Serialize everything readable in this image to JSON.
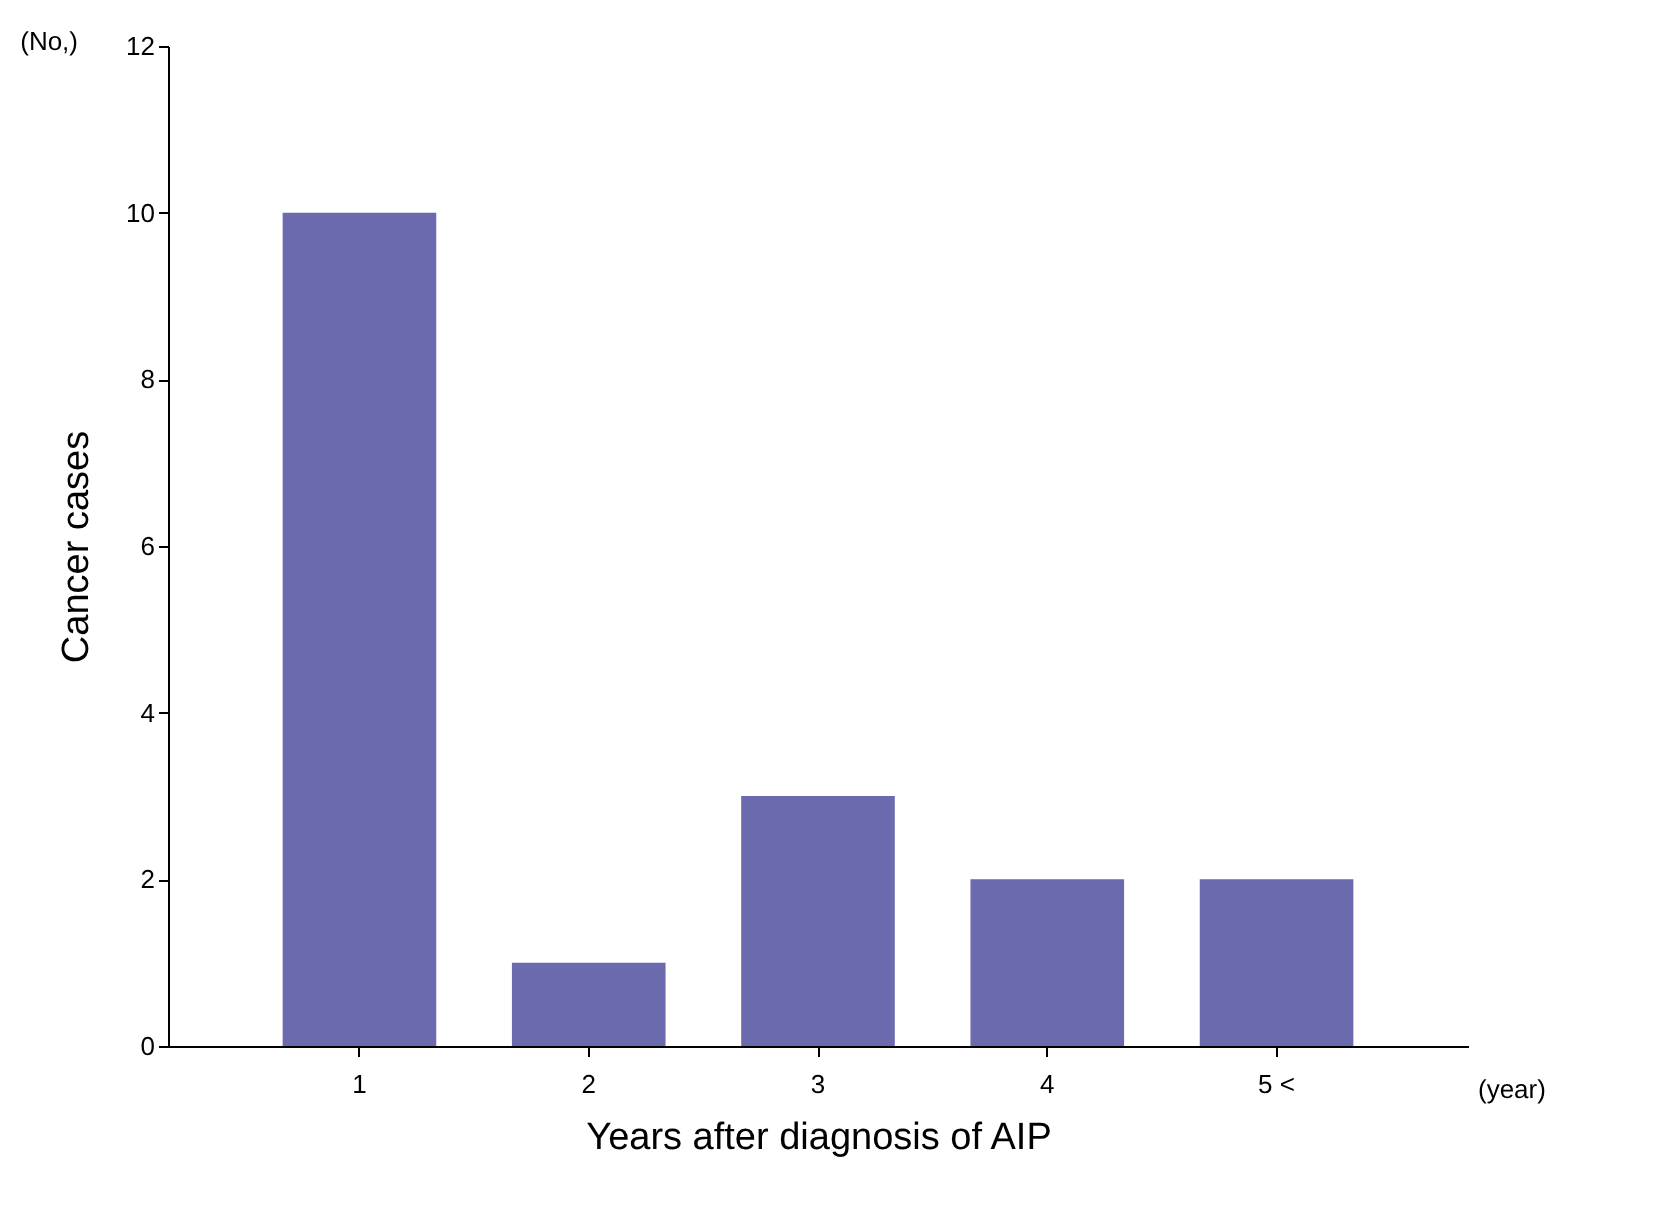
{
  "chart_data": {
    "type": "bar",
    "categories": [
      "1",
      "2",
      "3",
      "4",
      "5 <"
    ],
    "values": [
      10,
      1,
      3,
      2,
      2
    ],
    "color": "#6b6aae",
    "xlabel": "Years after diagnosis of AIP",
    "ylabel": "Cancer cases",
    "ylim": [
      0,
      12
    ],
    "yticks": [
      0,
      2,
      4,
      6,
      8,
      10,
      12
    ],
    "annotations": [
      "(No,)",
      "(year)"
    ],
    "grid": false
  }
}
